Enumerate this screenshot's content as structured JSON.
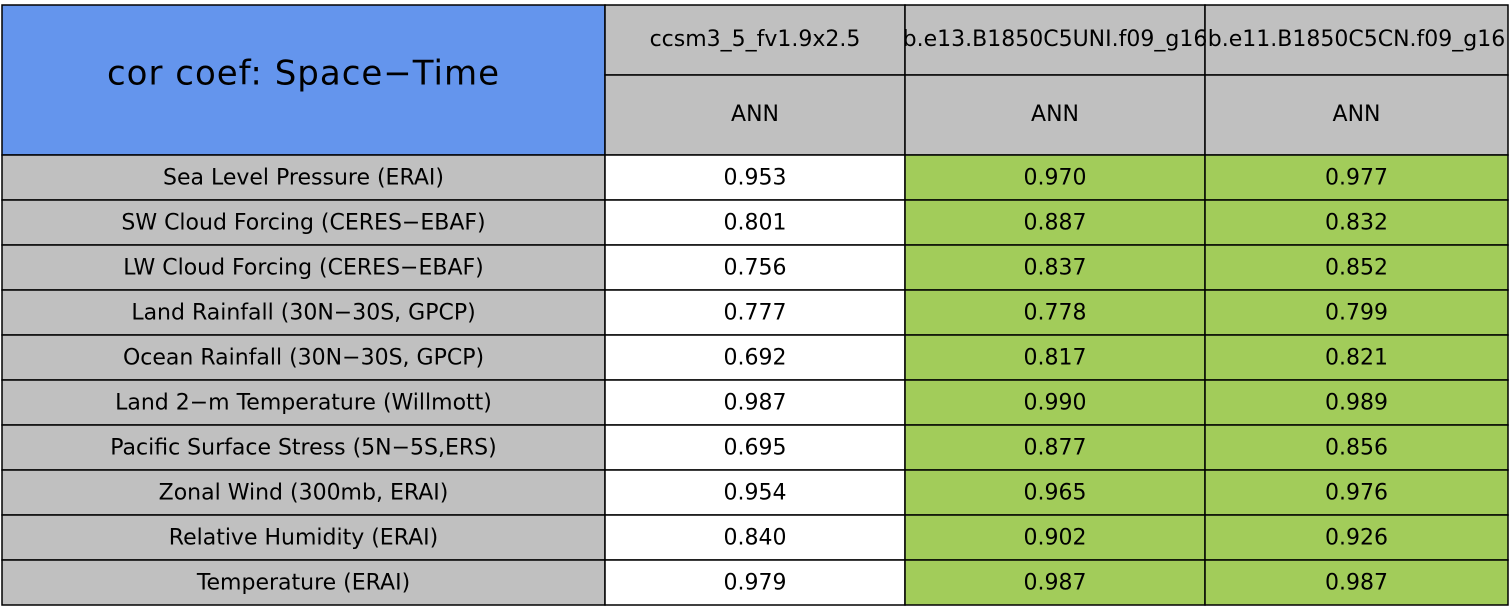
{
  "table": {
    "title": "cor coef: Space−Time",
    "columns": [
      "ccsm3_5_fv1.9x2.5",
      "b.e13.B1850C5UNI.f09_g16",
      "b.e11.B1850C5CN.f09_g16"
    ],
    "seasons": [
      "ANN",
      "ANN",
      "ANN"
    ],
    "rows": [
      [
        "Sea Level Pressure (ERAI)",
        "0.953",
        "0.970",
        "0.977"
      ],
      [
        "SW Cloud Forcing (CERES−EBAF)",
        "0.801",
        "0.887",
        "0.832"
      ],
      [
        "LW Cloud Forcing (CERES−EBAF)",
        "0.756",
        "0.837",
        "0.852"
      ],
      [
        "Land Rainfall (30N−30S, GPCP)",
        "0.777",
        "0.778",
        "0.799"
      ],
      [
        "Ocean Rainfall (30N−30S, GPCP)",
        "0.692",
        "0.817",
        "0.821"
      ],
      [
        "Land 2−m Temperature (Willmott)",
        "0.987",
        "0.990",
        "0.989"
      ],
      [
        "Pacific Surface Stress (5N−5S,ERS)",
        "0.695",
        "0.877",
        "0.856"
      ],
      [
        "Zonal Wind (300mb, ERAI)",
        "0.954",
        "0.965",
        "0.976"
      ],
      [
        "Relative Humidity (ERAI)",
        "0.840",
        "0.902",
        "0.926"
      ],
      [
        "Temperature (ERAI)",
        "0.979",
        "0.987",
        "0.987"
      ]
    ]
  }
}
